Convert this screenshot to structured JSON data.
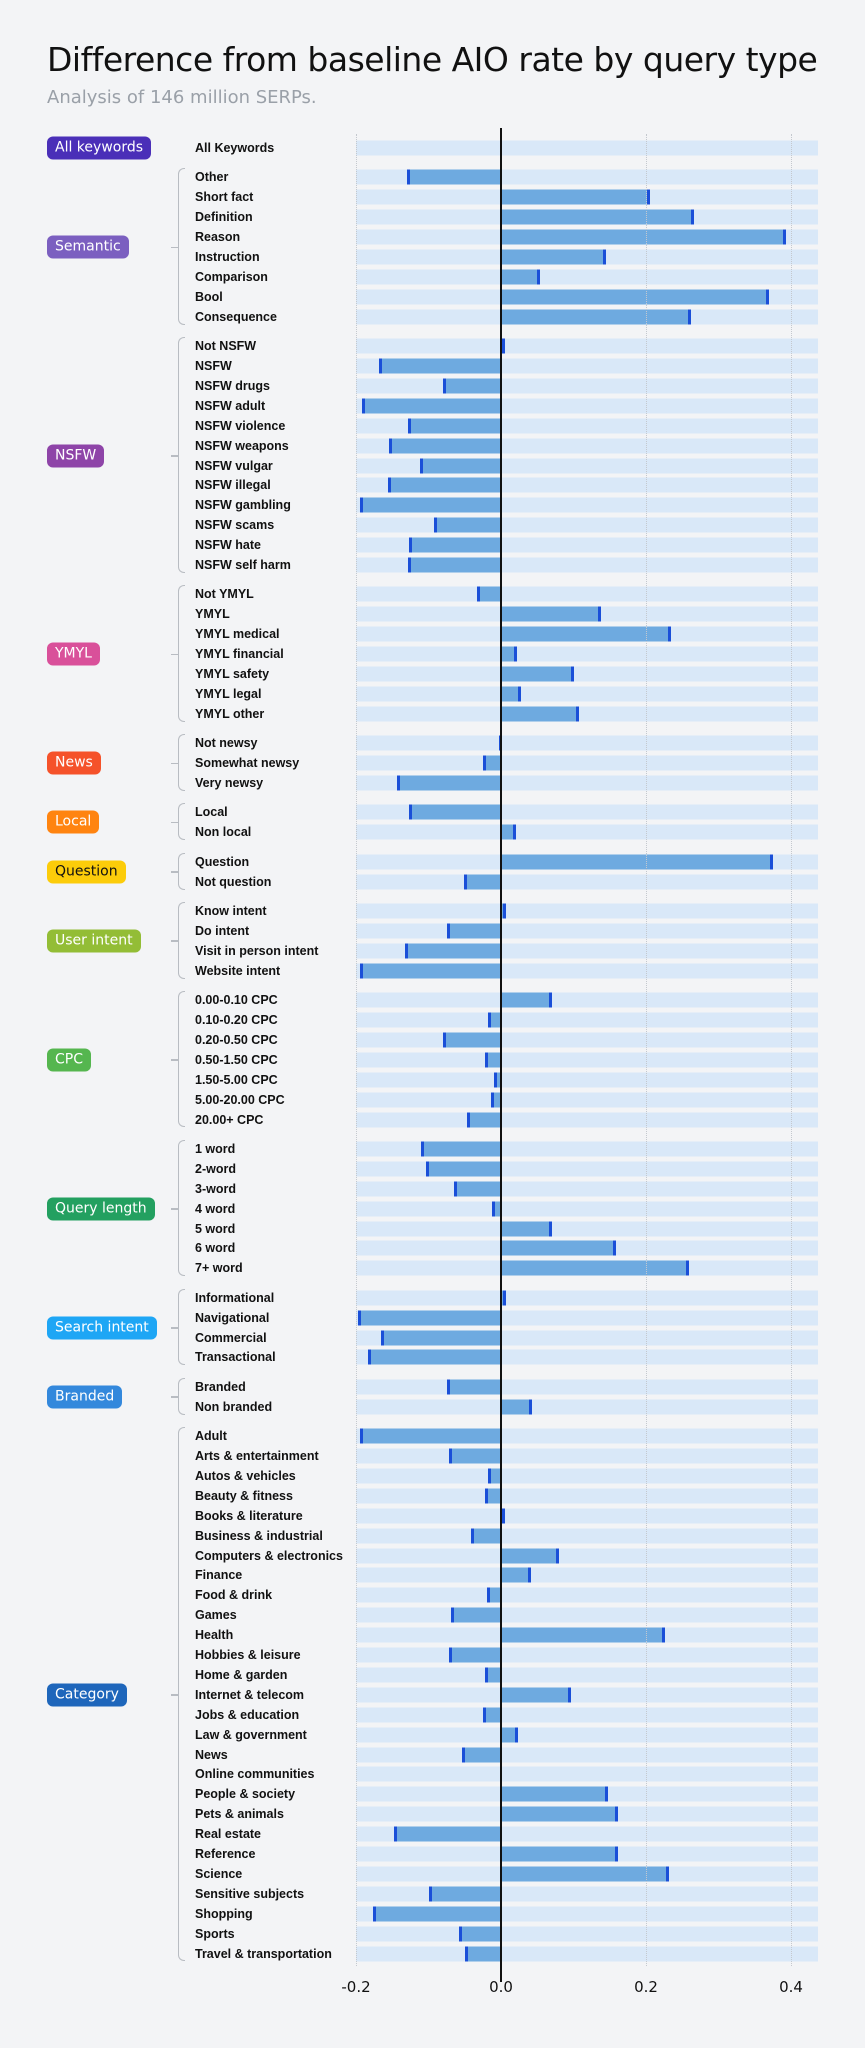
{
  "chart_data": {
    "type": "bar",
    "orientation": "horizontal",
    "title": "Difference from baseline AIO rate by query type",
    "subtitle": "Analysis of 146 million SERPs.",
    "xlim": [
      -0.2,
      0.44
    ],
    "xticks": [
      "-0.2",
      "0.0",
      "0.2",
      "0.4"
    ],
    "grid": true,
    "colors": {
      "bar": "#6eaae0",
      "bar_background": "#d9e8f8",
      "bar_end": "#1a4fd8",
      "zero_line": "#111111"
    },
    "groups": [
      {
        "name": "All keywords",
        "color": "#4a2fb8",
        "text_color": "#ffffff",
        "items": [
          {
            "label": "All Keywords",
            "value": 0
          }
        ]
      },
      {
        "name": "Semantic",
        "color": "#7b5fc0",
        "text_color": "#ffffff",
        "items": [
          {
            "label": "Other",
            "value": -0.13
          },
          {
            "label": "Short fact",
            "value": 0.206
          },
          {
            "label": "Definition",
            "value": 0.266
          },
          {
            "label": "Reason",
            "value": 0.393
          },
          {
            "label": "Instruction",
            "value": 0.145
          },
          {
            "label": "Comparison",
            "value": 0.054
          },
          {
            "label": "Bool",
            "value": 0.369
          },
          {
            "label": "Consequence",
            "value": 0.262
          }
        ]
      },
      {
        "name": "NSFW",
        "color": "#8e44a8",
        "text_color": "#ffffff",
        "items": [
          {
            "label": "Not NSFW",
            "value": 0.005
          },
          {
            "label": "NSFW",
            "value": -0.168
          },
          {
            "label": "NSFW drugs",
            "value": -0.08
          },
          {
            "label": "NSFW adult",
            "value": -0.192
          },
          {
            "label": "NSFW violence",
            "value": -0.128
          },
          {
            "label": "NSFW weapons",
            "value": -0.154
          },
          {
            "label": "NSFW vulgar",
            "value": -0.112
          },
          {
            "label": "NSFW illegal",
            "value": -0.156
          },
          {
            "label": "NSFW gambling",
            "value": -0.194
          },
          {
            "label": "NSFW scams",
            "value": -0.092
          },
          {
            "label": "NSFW hate",
            "value": -0.127
          },
          {
            "label": "NSFW self harm",
            "value": -0.128
          }
        ]
      },
      {
        "name": "YMYL",
        "color": "#d9509a",
        "text_color": "#ffffff",
        "items": [
          {
            "label": "Not YMYL",
            "value": -0.033
          },
          {
            "label": "YMYL",
            "value": 0.138
          },
          {
            "label": "YMYL medical",
            "value": 0.235
          },
          {
            "label": "YMYL financial",
            "value": 0.022
          },
          {
            "label": "YMYL safety",
            "value": 0.1
          },
          {
            "label": "YMYL legal",
            "value": 0.027
          },
          {
            "label": "YMYL other",
            "value": 0.107
          }
        ]
      },
      {
        "name": "News",
        "color": "#f5522a",
        "text_color": "#ffffff",
        "items": [
          {
            "label": "Not newsy",
            "value": 0.002
          },
          {
            "label": "Somewhat newsy",
            "value": -0.025
          },
          {
            "label": "Very newsy",
            "value": -0.143
          }
        ]
      },
      {
        "name": "Local",
        "color": "#ff8410",
        "text_color": "#ffffff",
        "items": [
          {
            "label": "Local",
            "value": -0.127
          },
          {
            "label": "Non local",
            "value": 0.02
          }
        ]
      },
      {
        "name": "Question",
        "color": "#fccc0a",
        "text_color": "#111111",
        "items": [
          {
            "label": "Question",
            "value": 0.375
          },
          {
            "label": "Not question",
            "value": -0.051
          }
        ]
      },
      {
        "name": "User intent",
        "color": "#93bd36",
        "text_color": "#ffffff",
        "items": [
          {
            "label": "Know intent",
            "value": 0.007
          },
          {
            "label": "Do intent",
            "value": -0.074
          },
          {
            "label": "Visit in person intent",
            "value": -0.132
          },
          {
            "label": "Website intent",
            "value": -0.195
          }
        ]
      },
      {
        "name": "CPC",
        "color": "#55b64f",
        "text_color": "#ffffff",
        "items": [
          {
            "label": "0.00-0.10 CPC",
            "value": 0.071
          },
          {
            "label": "0.10-0.20 CPC",
            "value": -0.018
          },
          {
            "label": "0.20-0.50 CPC",
            "value": -0.08
          },
          {
            "label": "0.50-1.50 CPC",
            "value": -0.022
          },
          {
            "label": "1.50-5.00 CPC",
            "value": -0.009
          },
          {
            "label": "5.00-20.00 CPC",
            "value": -0.014
          },
          {
            "label": "20.00+ CPC",
            "value": -0.047
          }
        ]
      },
      {
        "name": "Query length",
        "color": "#23a060",
        "text_color": "#ffffff",
        "items": [
          {
            "label": "1 word",
            "value": -0.11
          },
          {
            "label": "2-word",
            "value": -0.103
          },
          {
            "label": "3-word",
            "value": -0.065
          },
          {
            "label": "4 word",
            "value": -0.013
          },
          {
            "label": "5 word",
            "value": 0.071
          },
          {
            "label": "6 word",
            "value": 0.159
          },
          {
            "label": "7+ word",
            "value": 0.259
          }
        ]
      },
      {
        "name": "Search intent",
        "color": "#1ea6f5",
        "text_color": "#ffffff",
        "items": [
          {
            "label": "Informational",
            "value": 0.007
          },
          {
            "label": "Navigational",
            "value": -0.197
          },
          {
            "label": "Commercial",
            "value": -0.165
          },
          {
            "label": "Transactional",
            "value": -0.183
          }
        ]
      },
      {
        "name": "Branded",
        "color": "#3388dc",
        "text_color": "#ffffff",
        "items": [
          {
            "label": "Branded",
            "value": -0.074
          },
          {
            "label": "Non branded",
            "value": 0.043
          }
        ]
      },
      {
        "name": "Category",
        "color": "#1e66bb",
        "text_color": "#ffffff",
        "items": [
          {
            "label": "Adult",
            "value": -0.195
          },
          {
            "label": "Arts & entertainment",
            "value": -0.072
          },
          {
            "label": "Autos & vehicles",
            "value": -0.018
          },
          {
            "label": "Beauty & fitness",
            "value": -0.022
          },
          {
            "label": "Books & literature",
            "value": 0.005
          },
          {
            "label": "Business & industrial",
            "value": -0.042
          },
          {
            "label": "Computers & electronics",
            "value": 0.08
          },
          {
            "label": "Finance",
            "value": 0.042
          },
          {
            "label": "Food & drink",
            "value": -0.02
          },
          {
            "label": "Games",
            "value": -0.069
          },
          {
            "label": "Health",
            "value": 0.226
          },
          {
            "label": "Hobbies & leisure",
            "value": -0.072
          },
          {
            "label": "Home & garden",
            "value": -0.022
          },
          {
            "label": "Internet & telecom",
            "value": 0.096
          },
          {
            "label": "Jobs & education",
            "value": -0.025
          },
          {
            "label": "Law & government",
            "value": 0.024
          },
          {
            "label": "News",
            "value": -0.054
          },
          {
            "label": "Online communities",
            "value": 0.0
          },
          {
            "label": "People & society",
            "value": 0.147
          },
          {
            "label": "Pets & animals",
            "value": 0.161
          },
          {
            "label": "Real estate",
            "value": -0.147
          },
          {
            "label": "Reference",
            "value": 0.161
          },
          {
            "label": "Science",
            "value": 0.232
          },
          {
            "label": "Sensitive subjects",
            "value": -0.1
          },
          {
            "label": "Shopping",
            "value": -0.176
          },
          {
            "label": "Sports",
            "value": -0.058
          },
          {
            "label": "Travel & transportation",
            "value": -0.049
          }
        ]
      }
    ]
  }
}
